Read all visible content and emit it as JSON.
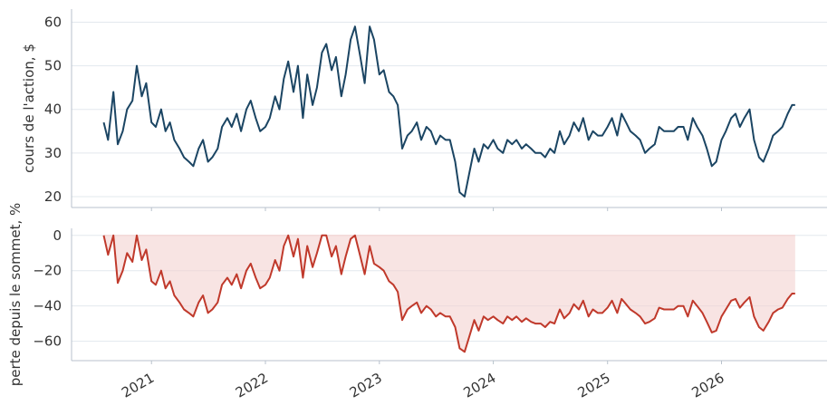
{
  "chart_data": [
    {
      "type": "line",
      "title": "",
      "ylabel": "cours de l'action, $",
      "xlabel": "",
      "ylim": [
        17.5,
        63
      ],
      "yticks": [
        20,
        30,
        40,
        50,
        60
      ],
      "grid": "horizontal",
      "colors": {
        "line": "#1b4563"
      },
      "x": [
        "2020-08-01",
        "2020-08-15",
        "2020-09-01",
        "2020-09-15",
        "2020-10-01",
        "2020-10-15",
        "2020-11-01",
        "2020-11-15",
        "2020-12-01",
        "2020-12-15",
        "2021-01-01",
        "2021-01-15",
        "2021-02-01",
        "2021-02-15",
        "2021-03-01",
        "2021-03-15",
        "2021-04-01",
        "2021-04-15",
        "2021-05-01",
        "2021-05-15",
        "2021-06-01",
        "2021-06-15",
        "2021-07-01",
        "2021-07-15",
        "2021-08-01",
        "2021-08-15",
        "2021-09-01",
        "2021-09-15",
        "2021-10-01",
        "2021-10-15",
        "2021-11-01",
        "2021-11-15",
        "2021-12-01",
        "2021-12-15",
        "2022-01-01",
        "2022-01-15",
        "2022-02-01",
        "2022-02-15",
        "2022-03-01",
        "2022-03-15",
        "2022-04-01",
        "2022-04-15",
        "2022-05-01",
        "2022-05-15",
        "2022-06-01",
        "2022-06-15",
        "2022-07-01",
        "2022-07-15",
        "2022-08-01",
        "2022-08-15",
        "2022-09-01",
        "2022-09-15",
        "2022-10-01",
        "2022-10-15",
        "2022-11-01",
        "2022-11-15",
        "2022-12-01",
        "2022-12-15",
        "2023-01-01",
        "2023-01-15",
        "2023-02-01",
        "2023-02-15",
        "2023-03-01",
        "2023-03-15",
        "2023-04-01",
        "2023-04-15",
        "2023-05-01",
        "2023-05-15",
        "2023-06-01",
        "2023-06-15",
        "2023-07-01",
        "2023-07-15",
        "2023-08-01",
        "2023-08-15",
        "2023-09-01",
        "2023-09-15",
        "2023-10-01",
        "2023-10-15",
        "2023-11-01",
        "2023-11-15",
        "2023-12-01",
        "2023-12-15",
        "2024-01-01",
        "2024-01-15",
        "2024-02-01",
        "2024-02-15",
        "2024-03-01",
        "2024-03-15",
        "2024-04-01",
        "2024-04-15",
        "2024-05-01",
        "2024-05-15",
        "2024-06-01",
        "2024-06-15",
        "2024-07-01",
        "2024-07-15",
        "2024-08-01",
        "2024-08-15",
        "2024-09-01",
        "2024-09-15",
        "2024-10-01",
        "2024-10-15",
        "2024-11-01",
        "2024-11-15",
        "2024-12-01",
        "2024-12-15",
        "2025-01-01",
        "2025-01-15",
        "2025-02-01",
        "2025-02-15",
        "2025-03-01",
        "2025-03-15",
        "2025-04-01",
        "2025-04-15",
        "2025-05-01",
        "2025-05-15",
        "2025-06-01",
        "2025-06-15",
        "2025-07-01",
        "2025-07-15",
        "2025-08-01",
        "2025-08-15",
        "2025-09-01",
        "2025-09-15",
        "2025-10-01",
        "2025-10-15",
        "2025-11-01",
        "2025-11-15",
        "2025-12-01",
        "2025-12-15",
        "2026-01-01",
        "2026-01-15",
        "2026-02-01",
        "2026-02-15",
        "2026-03-01",
        "2026-03-15",
        "2026-04-01",
        "2026-04-15",
        "2026-05-01",
        "2026-05-15",
        "2026-06-01",
        "2026-06-15",
        "2026-07-01",
        "2026-07-15",
        "2026-08-01",
        "2026-08-15",
        "2026-08-25"
      ],
      "xticks": [
        "2021-01-01",
        "2022-01-01",
        "2023-01-01",
        "2024-01-01",
        "2025-01-01",
        "2026-01-01"
      ],
      "xticklabels": [
        "2021",
        "2022",
        "2023",
        "2024",
        "2025",
        "2026"
      ],
      "series": [
        {
          "values": [
            37,
            33,
            44,
            32,
            35,
            40,
            42,
            50,
            43,
            46,
            37,
            36,
            40,
            35,
            37,
            33,
            31,
            29,
            28,
            27,
            31,
            33,
            28,
            29,
            31,
            36,
            38,
            36,
            39,
            35,
            40,
            42,
            38,
            35,
            36,
            38,
            43,
            40,
            47,
            51,
            44,
            50,
            38,
            48,
            41,
            45,
            53,
            55,
            49,
            52,
            43,
            48,
            56,
            59,
            52,
            46,
            59,
            56,
            48,
            49,
            44,
            43,
            41,
            31,
            34,
            35,
            37,
            33,
            36,
            35,
            32,
            34,
            33,
            33,
            28,
            21,
            20,
            25,
            31,
            28,
            32,
            31,
            33,
            31,
            30,
            33,
            32,
            33,
            31,
            32,
            31,
            30,
            30,
            29,
            31,
            30,
            35,
            32,
            34,
            37,
            35,
            38,
            33,
            35,
            34,
            34,
            36,
            38,
            34,
            39,
            37,
            35,
            34,
            33,
            30,
            31,
            32,
            36,
            35,
            35,
            35,
            36,
            36,
            33,
            38,
            36,
            34,
            31,
            27,
            28,
            33,
            35,
            38,
            39,
            36,
            38,
            40,
            33,
            29,
            28,
            31,
            34,
            35,
            36,
            39,
            41,
            41
          ]
        }
      ]
    },
    {
      "type": "area",
      "title": "",
      "ylabel": "perte depuis le sommet, %",
      "xlabel": "",
      "ylim": [
        -71,
        4
      ],
      "yticks": [
        0,
        -20,
        -40,
        -60
      ],
      "yticklabels": [
        "0",
        "−20",
        "−40",
        "−60"
      ],
      "grid": "horizontal",
      "colors": {
        "line": "#c0392b",
        "fill": "#f3d2d0"
      },
      "xticks": [
        "2021-01-01",
        "2022-01-01",
        "2023-01-01",
        "2024-01-01",
        "2025-01-01",
        "2026-01-01"
      ],
      "xticklabels": [
        "2021",
        "2022",
        "2023",
        "2024",
        "2025",
        "2026"
      ],
      "series": [
        {
          "values": [
            0,
            -11,
            0,
            -27,
            -20,
            -10,
            -15,
            0,
            -14,
            -8,
            -26,
            -28,
            -20,
            -30,
            -26,
            -34,
            -38,
            -42,
            -44,
            -46,
            -38,
            -34,
            -44,
            -42,
            -38,
            -28,
            -24,
            -28,
            -22,
            -30,
            -20,
            -16,
            -24,
            -30,
            -28,
            -24,
            -14,
            -20,
            -6,
            0,
            -12,
            -2,
            -24,
            -6,
            -18,
            -10,
            0,
            0,
            -12,
            -6,
            -22,
            -12,
            -2,
            0,
            -12,
            -22,
            -6,
            -16,
            -18,
            -20,
            -26,
            -28,
            -32,
            -48,
            -42,
            -40,
            -38,
            -44,
            -40,
            -42,
            -46,
            -44,
            -46,
            -46,
            -52,
            -64,
            -66,
            -58,
            -48,
            -54,
            -46,
            -48,
            -46,
            -48,
            -50,
            -46,
            -48,
            -46,
            -49,
            -47,
            -49,
            -50,
            -50,
            -52,
            -49,
            -50,
            -42,
            -47,
            -44,
            -39,
            -42,
            -37,
            -46,
            -42,
            -44,
            -44,
            -41,
            -37,
            -44,
            -36,
            -39,
            -42,
            -44,
            -46,
            -50,
            -49,
            -47,
            -41,
            -42,
            -42,
            -42,
            -40,
            -40,
            -46,
            -37,
            -40,
            -44,
            -49,
            -55,
            -54,
            -46,
            -42,
            -37,
            -36,
            -41,
            -38,
            -35,
            -46,
            -52,
            -54,
            -49,
            -44,
            -42,
            -41,
            -36,
            -33,
            -33
          ]
        }
      ]
    }
  ]
}
